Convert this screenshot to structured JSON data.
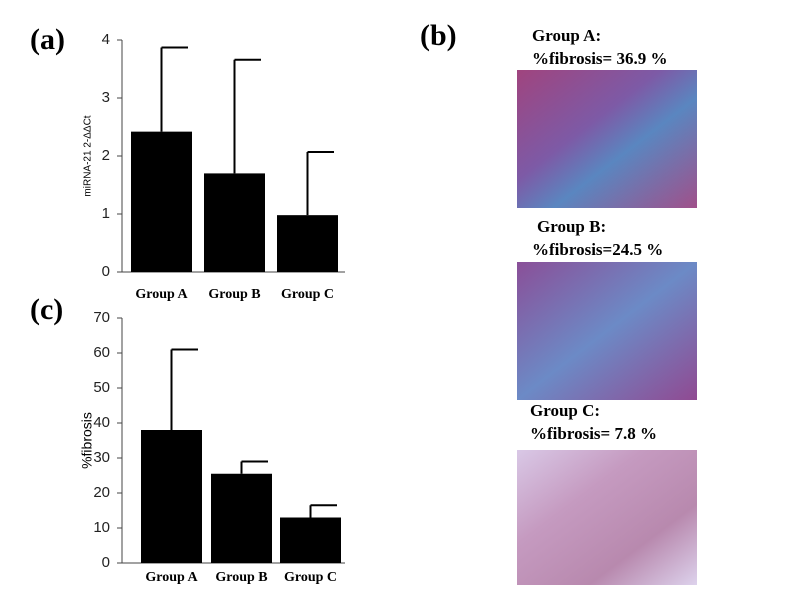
{
  "chart_data": [
    {
      "type": "bar",
      "label": "(a)",
      "ylabel": "miRNA-21  2-ΔΔCt",
      "categories": [
        "Group A",
        "Group B",
        "Group C"
      ],
      "values": [
        2.42,
        1.7,
        0.98
      ],
      "errors": [
        1.45,
        1.96,
        1.09
      ],
      "color": "#000000",
      "ylim": [
        0,
        4
      ],
      "yticks": [
        0,
        1,
        2,
        3,
        4
      ]
    },
    {
      "type": "bar",
      "label": "(c)",
      "ylabel": "%fibrosis",
      "categories": [
        "Group A",
        "Group B",
        "Group C"
      ],
      "values": [
        38,
        25.5,
        13
      ],
      "errors": [
        23,
        3.5,
        3.5
      ],
      "color": "#000000",
      "ylim": [
        0,
        70
      ],
      "yticks": [
        0,
        10,
        20,
        30,
        40,
        50,
        60,
        70
      ]
    }
  ],
  "panel_b": {
    "label": "(b)",
    "images": [
      {
        "title": "Group A:",
        "caption": "%fibrosis= 36.9 %"
      },
      {
        "title": "Group B:",
        "caption": "%fibrosis=24.5 %"
      },
      {
        "title": "Group C:",
        "caption": "%fibrosis= 7.8 %"
      }
    ]
  }
}
